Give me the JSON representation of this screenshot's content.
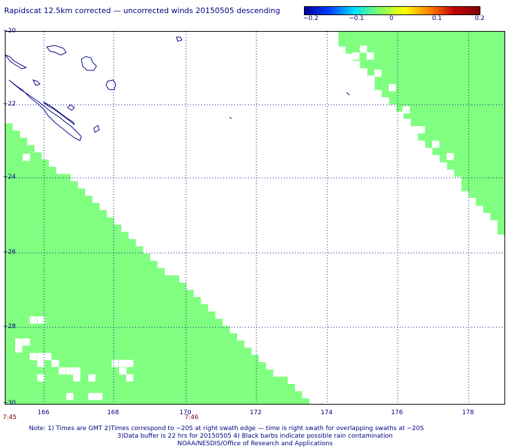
{
  "title": "Rapidscat 12.5km corrected — uncorrected winds 20150505 descending",
  "colorbar": {
    "labels": [
      "−0.2",
      "−0.1",
      "0",
      "0.1",
      "0.2"
    ],
    "colors": [
      "#0000a0",
      "#0040ff",
      "#00e0ff",
      "#80ff60",
      "#ffff00",
      "#ff8000",
      "#c00000",
      "#800000"
    ]
  },
  "axes": {
    "lat_labels": [
      "−20",
      "−22",
      "−24",
      "−26",
      "−28",
      "−30"
    ],
    "lon_labels": [
      "166",
      "168",
      "170",
      "172",
      "174",
      "176",
      "178"
    ],
    "lat_range": [
      -30,
      -20
    ],
    "lon_range": [
      165,
      179
    ]
  },
  "times": [
    "7:45",
    "7:46"
  ],
  "notes": [
    "Note: 1) Times are GMT 2)Times correspond to −20S at right swath edge — time is right swath for overlapping swaths at −20S",
    "3)Data buffer is 22 hrs for 20150505 4) Black barbs indicate possible rain contamination",
    "NOAA/NESDIS/Office of Research and Applications"
  ],
  "swath_color": "#80ff80",
  "coast_color": "#000080",
  "grid_color": "#000080"
}
